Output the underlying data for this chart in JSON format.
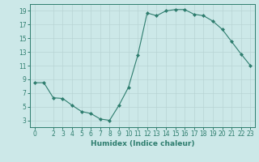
{
  "x": [
    0,
    1,
    2,
    3,
    4,
    5,
    6,
    7,
    8,
    9,
    10,
    11,
    12,
    13,
    14,
    15,
    16,
    17,
    18,
    19,
    20,
    21,
    22,
    23
  ],
  "y": [
    8.5,
    8.5,
    6.3,
    6.2,
    5.2,
    4.3,
    4.0,
    3.2,
    3.0,
    5.2,
    7.8,
    12.5,
    18.7,
    18.3,
    19.0,
    19.2,
    19.2,
    18.5,
    18.3,
    17.5,
    16.3,
    14.5,
    12.7,
    11.0
  ],
  "xlabel": "Humidex (Indice chaleur)",
  "xlim": [
    -0.5,
    23.5
  ],
  "ylim": [
    2,
    20
  ],
  "yticks": [
    3,
    5,
    7,
    9,
    11,
    13,
    15,
    17,
    19
  ],
  "xticks": [
    0,
    2,
    3,
    4,
    5,
    6,
    7,
    8,
    9,
    10,
    11,
    12,
    13,
    14,
    15,
    16,
    17,
    18,
    19,
    20,
    21,
    22,
    23
  ],
  "line_color": "#2e7d6e",
  "marker_color": "#2e7d6e",
  "bg_color": "#cce8e8",
  "grid_color": "#b8d4d4",
  "axis_color": "#2e7d6e",
  "label_fontsize": 6.5,
  "tick_fontsize": 5.5
}
